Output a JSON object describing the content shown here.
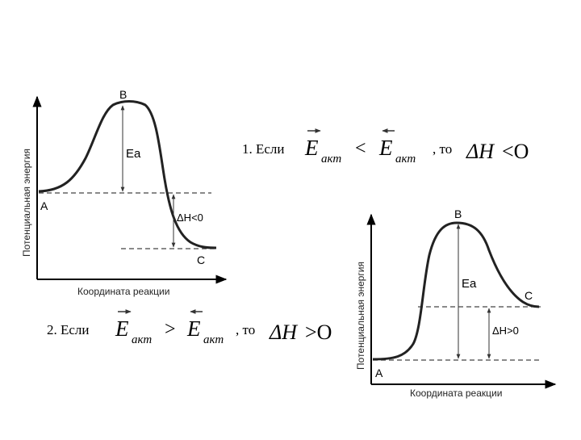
{
  "diagram1": {
    "y_axis_label": "Потенциальная энергия",
    "x_axis_label": "Координата реакции",
    "point_a": "A",
    "point_b": "B",
    "point_c": "C",
    "ea_label": "Ea",
    "dh_label": "ΔH<0"
  },
  "diagram2": {
    "y_axis_label": "Потенциальная энергия",
    "x_axis_label": "Координата реакции",
    "point_a": "A",
    "point_b": "B",
    "point_c": "C",
    "ea_label": "Ea",
    "dh_label": "ΔH>0"
  },
  "condition1": {
    "prefix": "1. Если",
    "e_symbol": "E",
    "subscript": "акт",
    "operator": "<",
    "then": ", то",
    "delta_h": "ΔH",
    "result": "<O"
  },
  "condition2": {
    "prefix": "2. Если",
    "e_symbol": "E",
    "subscript": "акт",
    "operator": ">",
    "then": ", то",
    "delta_h": "ΔH",
    "result": ">O"
  }
}
